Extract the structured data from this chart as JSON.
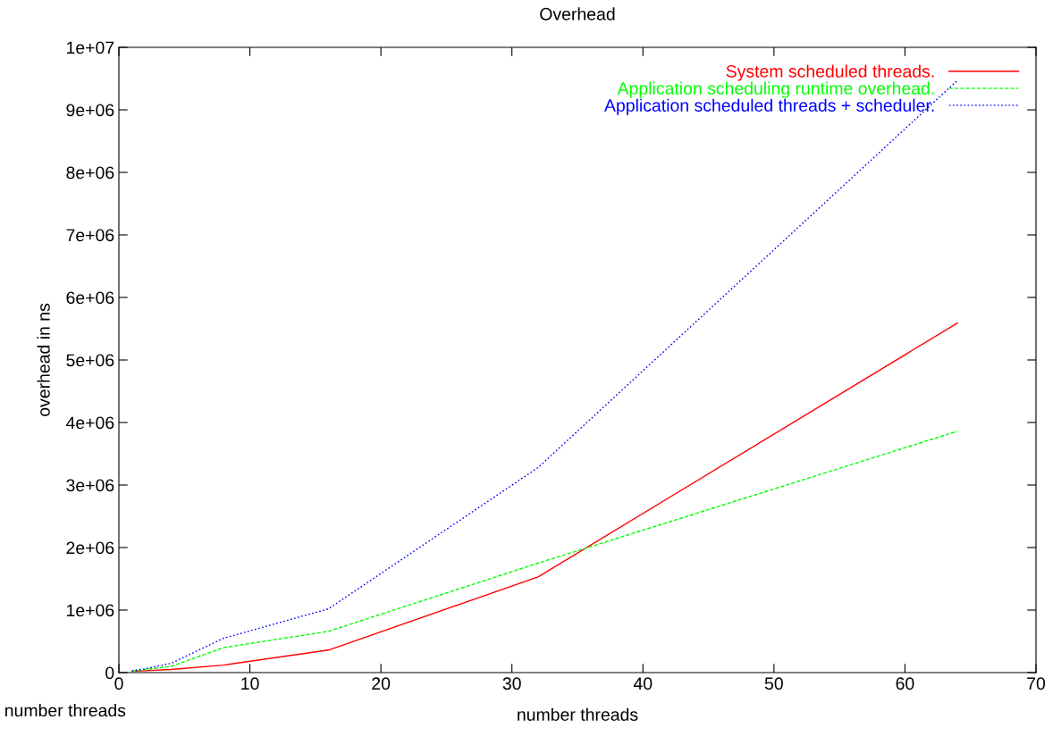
{
  "chart_data": {
    "type": "line",
    "title": "Overhead",
    "xlabel": "number threads",
    "ylabel": "overhead in ns",
    "x": [
      1,
      2,
      4,
      8,
      16,
      32,
      64
    ],
    "series": [
      {
        "name": "System scheduled threads.",
        "color": "#ff0000",
        "line_style": "solid",
        "values": [
          20000,
          30000,
          50000,
          120000,
          360000,
          1530000,
          5590000
        ]
      },
      {
        "name": "Application scheduling runtime overhead.",
        "color": "#00ff00",
        "line_style": "dashed",
        "values": [
          20000,
          50000,
          100000,
          400000,
          660000,
          1750000,
          3860000
        ]
      },
      {
        "name": "Application scheduled threads + scheduler.",
        "color": "#0000ff",
        "line_style": "dotted",
        "values": [
          30000,
          60000,
          150000,
          550000,
          1020000,
          3280000,
          9470000
        ]
      }
    ],
    "xlim": [
      0,
      70
    ],
    "xticks": [
      0,
      10,
      20,
      30,
      40,
      50,
      60,
      70
    ],
    "ylim": [
      0,
      10000000
    ],
    "yticks": [
      0,
      {
        "value": 1000000,
        "label": "1e+06"
      },
      {
        "value": 2000000,
        "label": "2e+06"
      },
      {
        "value": 3000000,
        "label": "3e+06"
      },
      {
        "value": 4000000,
        "label": "4e+06"
      },
      {
        "value": 5000000,
        "label": "5e+06"
      },
      {
        "value": 6000000,
        "label": "6e+06"
      },
      {
        "value": 7000000,
        "label": "7e+06"
      },
      {
        "value": 8000000,
        "label": "8e+06"
      },
      {
        "value": 9000000,
        "label": "9e+06"
      },
      {
        "value": 10000000,
        "label": "1e+07"
      }
    ],
    "annotations": [
      "number threads"
    ],
    "legend": "top right",
    "grid": false,
    "marker": "none"
  }
}
